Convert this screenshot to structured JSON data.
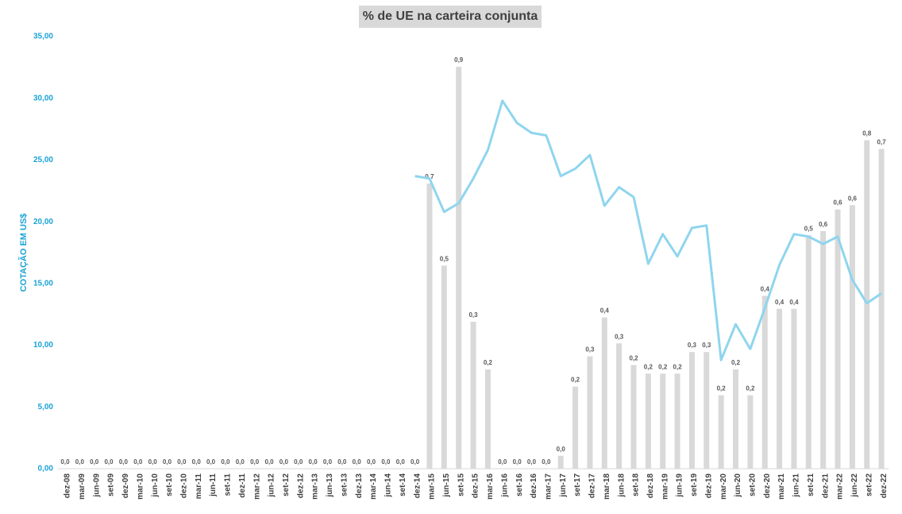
{
  "chart_data": {
    "type": "bar-line",
    "title": "% de UE na carteira conjunta",
    "y_axis_label": "COTAÇÃO EM US$",
    "categories": [
      "dez-08",
      "mar-09",
      "jun-09",
      "set-09",
      "dez-09",
      "mar-10",
      "jun-10",
      "set-10",
      "dez-10",
      "mar-11",
      "jun-11",
      "set-11",
      "dez-11",
      "mar-12",
      "jun-12",
      "set-12",
      "dez-12",
      "mar-13",
      "jun-13",
      "set-13",
      "dez-13",
      "mar-14",
      "jun-14",
      "set-14",
      "dez-14",
      "mar-15",
      "jun-15",
      "set-15",
      "dez-15",
      "mar-16",
      "jun-16",
      "set-16",
      "dez-16",
      "mar-17",
      "jun-17",
      "set-17",
      "dez-17",
      "mar-18",
      "jun-18",
      "set-18",
      "dez-18",
      "mar-19",
      "jun-19",
      "set-19",
      "dez-19",
      "mar-20",
      "jun-20",
      "set-20",
      "dez-20",
      "mar-21",
      "jun-21",
      "set-21",
      "dez-21",
      "mar-22",
      "jun-22",
      "set-22",
      "dez-22"
    ],
    "ylim": [
      0,
      35
    ],
    "yticks": [
      {
        "value": 0,
        "label": "0,00"
      },
      {
        "value": 5,
        "label": "5,00"
      },
      {
        "value": 10,
        "label": "10,00"
      },
      {
        "value": 15,
        "label": "15,00"
      },
      {
        "value": 20,
        "label": "20,00"
      },
      {
        "value": 25,
        "label": "25,00"
      },
      {
        "value": 30,
        "label": "30,00"
      },
      {
        "value": 35,
        "label": "35,00"
      }
    ],
    "y2lim": [
      0,
      1
    ],
    "series": [
      {
        "type": "bar",
        "axis": "y2",
        "color": "#d9d9d9",
        "values": [
          0,
          0,
          0,
          0,
          0,
          0,
          0,
          0,
          0,
          0,
          0,
          0,
          0,
          0,
          0,
          0,
          0,
          0,
          0,
          0,
          0,
          0,
          0,
          0,
          0,
          0.66,
          0.47,
          0.93,
          0.34,
          0.23,
          0,
          0,
          0,
          0,
          0.03,
          0.19,
          0.26,
          0.35,
          0.29,
          0.24,
          0.22,
          0.22,
          0.22,
          0.27,
          0.27,
          0.17,
          0.23,
          0.17,
          0.4,
          0.37,
          0.37,
          0.54,
          0.55,
          0.6,
          0.61,
          0.76,
          0.74
        ],
        "value_labels": [
          "0,0",
          "0,0",
          "0,0",
          "0,0",
          "0,0",
          "0,0",
          "0,0",
          "0,0",
          "0,0",
          "0,0",
          "0,0",
          "0,0",
          "0,0",
          "0,0",
          "0,0",
          "0,0",
          "0,0",
          "0,0",
          "0,0",
          "0,0",
          "0,0",
          "0,0",
          "0,0",
          "0,0",
          "0,0",
          "0,7",
          "0,5",
          "0,9",
          "0,3",
          "0,2",
          "0,0",
          "0,0",
          "0,0",
          "0,0",
          "0,0",
          "0,2",
          "0,3",
          "0,4",
          "0,3",
          "0,2",
          "0,2",
          "0,2",
          "0,2",
          "0,3",
          "0,3",
          "0,2",
          "0,2",
          "0,2",
          "0,4",
          "0,4",
          "0,4",
          "0,5",
          "0,6",
          "0,6",
          "0,6",
          "0,8",
          "0,7"
        ]
      },
      {
        "type": "line",
        "color": "#8fd5ee",
        "values": [
          null,
          null,
          null,
          null,
          null,
          null,
          null,
          null,
          null,
          null,
          null,
          null,
          null,
          null,
          null,
          null,
          null,
          null,
          null,
          null,
          null,
          null,
          null,
          null,
          23.7,
          23.5,
          20.8,
          21.5,
          23.5,
          25.8,
          29.8,
          28.0,
          27.2,
          27.0,
          23.7,
          24.3,
          25.4,
          21.3,
          22.8,
          22.0,
          16.6,
          19.0,
          17.2,
          19.5,
          19.7,
          8.8,
          11.7,
          9.7,
          13.0,
          16.5,
          19.0,
          18.8,
          18.2,
          18.8,
          15.3,
          13.4,
          14.2
        ]
      }
    ]
  }
}
